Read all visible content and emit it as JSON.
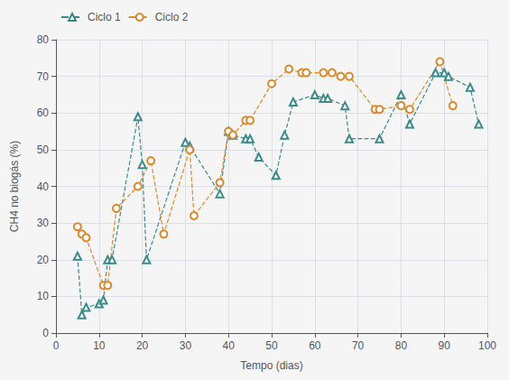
{
  "chart_data": {
    "type": "line",
    "xlabel": "Tempo (dias)",
    "ylabel": "CH4 no biogás (%)",
    "series": [
      {
        "name": "Ciclo 1",
        "color": "#3b8a8c",
        "marker": "triangle",
        "line_style": "dashed",
        "x": [
          5,
          6,
          7,
          10,
          11,
          12,
          13,
          19,
          20,
          21,
          30,
          31,
          38,
          40,
          41,
          44,
          45,
          47,
          51,
          53,
          55,
          60,
          62,
          63,
          67,
          68,
          75,
          80,
          82,
          88,
          90,
          91,
          96,
          98
        ],
        "values": [
          21,
          5,
          7,
          8,
          9,
          20,
          20,
          59,
          46,
          20,
          52,
          51,
          38,
          55,
          54,
          53,
          53,
          48,
          43,
          54,
          63,
          65,
          64,
          64,
          62,
          53,
          53,
          65,
          57,
          71,
          71,
          70,
          67,
          57
        ]
      },
      {
        "name": "Ciclo 2",
        "color": "#d98a2e",
        "marker": "circle",
        "line_style": "dashed",
        "x": [
          5,
          6,
          7,
          11,
          12,
          14,
          19,
          22,
          25,
          31,
          32,
          38,
          40,
          41,
          44,
          45,
          50,
          54,
          57,
          58,
          62,
          64,
          66,
          68,
          74,
          75,
          80,
          82,
          89,
          92
        ],
        "values": [
          29,
          27,
          26,
          13,
          13,
          34,
          40,
          47,
          27,
          50,
          32,
          41,
          55,
          54,
          58,
          58,
          68,
          72,
          71,
          71,
          71,
          71,
          70,
          70,
          61,
          61,
          62,
          61,
          74,
          62
        ]
      }
    ],
    "xlim": [
      0,
      100
    ],
    "ylim": [
      0,
      80
    ],
    "xticks": [
      0,
      10,
      20,
      30,
      40,
      50,
      60,
      70,
      80,
      90,
      100
    ],
    "yticks": [
      0,
      10,
      20,
      30,
      40,
      50,
      60,
      70,
      80
    ],
    "grid": true,
    "legend": "upper left"
  }
}
